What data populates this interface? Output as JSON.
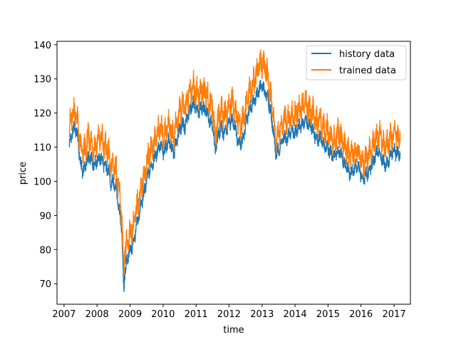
{
  "chart_data": {
    "type": "line",
    "title": "",
    "xlabel": "time",
    "ylabel": "price",
    "xlim": [
      "2006-10-15",
      "2017-07-01"
    ],
    "ylim": [
      64,
      141
    ],
    "x_tick_labels": [
      "2007",
      "2008",
      "2009",
      "2010",
      "2011",
      "2012",
      "2013",
      "2014",
      "2015",
      "2016",
      "2017"
    ],
    "y_tick_labels": [
      "70",
      "80",
      "90",
      "100",
      "110",
      "120",
      "130",
      "140"
    ],
    "grid": false,
    "legend_position": "top-right",
    "series": [
      {
        "name": "history data",
        "color": "#1f77b4",
        "points": [
          [
            "2007-03-01",
            111
          ],
          [
            "2007-04-01",
            114
          ],
          [
            "2007-05-01",
            116
          ],
          [
            "2007-06-01",
            113
          ],
          [
            "2007-07-01",
            105
          ],
          [
            "2007-08-01",
            103
          ],
          [
            "2007-09-01",
            105
          ],
          [
            "2007-10-01",
            107
          ],
          [
            "2007-11-01",
            106
          ],
          [
            "2007-12-01",
            105
          ],
          [
            "2008-01-01",
            106
          ],
          [
            "2008-02-01",
            107
          ],
          [
            "2008-03-01",
            106
          ],
          [
            "2008-04-01",
            104
          ],
          [
            "2008-05-01",
            104
          ],
          [
            "2008-06-01",
            99
          ],
          [
            "2008-07-01",
            100
          ],
          [
            "2008-08-01",
            98
          ],
          [
            "2008-09-01",
            92
          ],
          [
            "2008-10-01",
            86
          ],
          [
            "2008-10-20",
            70
          ],
          [
            "2008-10-25",
            67
          ],
          [
            "2008-11-01",
            73
          ],
          [
            "2008-12-01",
            77
          ],
          [
            "2009-01-01",
            80
          ],
          [
            "2009-02-01",
            81
          ],
          [
            "2009-03-01",
            85
          ],
          [
            "2009-04-01",
            89
          ],
          [
            "2009-05-01",
            93
          ],
          [
            "2009-06-01",
            96
          ],
          [
            "2009-07-01",
            100
          ],
          [
            "2009-08-01",
            103
          ],
          [
            "2009-09-01",
            105
          ],
          [
            "2009-10-01",
            107
          ],
          [
            "2009-11-01",
            109
          ],
          [
            "2009-12-01",
            111
          ],
          [
            "2010-01-01",
            108
          ],
          [
            "2010-02-01",
            110
          ],
          [
            "2010-03-01",
            112
          ],
          [
            "2010-04-01",
            110
          ],
          [
            "2010-05-01",
            108
          ],
          [
            "2010-06-01",
            112
          ],
          [
            "2010-07-01",
            115
          ],
          [
            "2010-08-01",
            117
          ],
          [
            "2010-09-01",
            116
          ],
          [
            "2010-10-01",
            119
          ],
          [
            "2010-11-01",
            121
          ],
          [
            "2010-12-01",
            123
          ],
          [
            "2011-01-01",
            121
          ],
          [
            "2011-02-01",
            120
          ],
          [
            "2011-03-01",
            122
          ],
          [
            "2011-04-01",
            121
          ],
          [
            "2011-05-01",
            120
          ],
          [
            "2011-06-01",
            118
          ],
          [
            "2011-07-01",
            117
          ],
          [
            "2011-08-01",
            109
          ],
          [
            "2011-09-01",
            113
          ],
          [
            "2011-10-01",
            116
          ],
          [
            "2011-11-01",
            114
          ],
          [
            "2011-12-01",
            115
          ],
          [
            "2012-01-01",
            117
          ],
          [
            "2012-02-01",
            118
          ],
          [
            "2012-03-01",
            117
          ],
          [
            "2012-04-01",
            113
          ],
          [
            "2012-05-01",
            111
          ],
          [
            "2012-06-01",
            112
          ],
          [
            "2012-07-01",
            116
          ],
          [
            "2012-08-01",
            120
          ],
          [
            "2012-09-01",
            122
          ],
          [
            "2012-10-01",
            124
          ],
          [
            "2012-11-01",
            125
          ],
          [
            "2012-12-01",
            127
          ],
          [
            "2013-01-01",
            128
          ],
          [
            "2013-02-01",
            126
          ],
          [
            "2013-03-01",
            125
          ],
          [
            "2013-04-01",
            121
          ],
          [
            "2013-05-01",
            116
          ],
          [
            "2013-06-01",
            108
          ],
          [
            "2013-07-01",
            109
          ],
          [
            "2013-08-01",
            111
          ],
          [
            "2013-09-01",
            113
          ],
          [
            "2013-10-01",
            112
          ],
          [
            "2013-11-01",
            114
          ],
          [
            "2013-12-01",
            115
          ],
          [
            "2014-01-01",
            114
          ],
          [
            "2014-02-01",
            116
          ],
          [
            "2014-03-01",
            116
          ],
          [
            "2014-04-01",
            117
          ],
          [
            "2014-05-01",
            118
          ],
          [
            "2014-06-01",
            116
          ],
          [
            "2014-07-01",
            116
          ],
          [
            "2014-08-01",
            114
          ],
          [
            "2014-09-01",
            112
          ],
          [
            "2014-10-01",
            113
          ],
          [
            "2014-11-01",
            111
          ],
          [
            "2014-12-01",
            110
          ],
          [
            "2015-01-01",
            110
          ],
          [
            "2015-02-01",
            108
          ],
          [
            "2015-03-01",
            107
          ],
          [
            "2015-04-01",
            108
          ],
          [
            "2015-05-01",
            109
          ],
          [
            "2015-06-01",
            107
          ],
          [
            "2015-07-01",
            105
          ],
          [
            "2015-08-01",
            104
          ],
          [
            "2015-09-01",
            102
          ],
          [
            "2015-10-01",
            103
          ],
          [
            "2015-11-01",
            104
          ],
          [
            "2015-12-01",
            104
          ],
          [
            "2016-01-01",
            102
          ],
          [
            "2016-02-01",
            101
          ],
          [
            "2016-03-01",
            102
          ],
          [
            "2016-04-01",
            103
          ],
          [
            "2016-05-01",
            105
          ],
          [
            "2016-06-01",
            107
          ],
          [
            "2016-07-01",
            109
          ],
          [
            "2016-08-01",
            108
          ],
          [
            "2016-09-01",
            106
          ],
          [
            "2016-10-01",
            105
          ],
          [
            "2016-11-01",
            106
          ],
          [
            "2016-12-01",
            108
          ],
          [
            "2017-01-01",
            109
          ],
          [
            "2017-02-01",
            108
          ],
          [
            "2017-03-10",
            108
          ]
        ]
      },
      {
        "name": "trained data",
        "color": "#ff7f0e",
        "points": [
          [
            "2007-03-01",
            116
          ],
          [
            "2007-04-01",
            119
          ],
          [
            "2007-05-01",
            121
          ],
          [
            "2007-06-01",
            117
          ],
          [
            "2007-07-01",
            110
          ],
          [
            "2007-08-01",
            108
          ],
          [
            "2007-09-01",
            110
          ],
          [
            "2007-10-01",
            113
          ],
          [
            "2007-11-01",
            111
          ],
          [
            "2007-12-01",
            110
          ],
          [
            "2008-01-01",
            111
          ],
          [
            "2008-02-01",
            113
          ],
          [
            "2008-03-01",
            112
          ],
          [
            "2008-04-01",
            110
          ],
          [
            "2008-05-01",
            109
          ],
          [
            "2008-06-01",
            104
          ],
          [
            "2008-07-01",
            105
          ],
          [
            "2008-08-01",
            103
          ],
          [
            "2008-09-01",
            97
          ],
          [
            "2008-10-01",
            90
          ],
          [
            "2008-10-20",
            74
          ],
          [
            "2008-10-25",
            70
          ],
          [
            "2008-11-01",
            79
          ],
          [
            "2008-12-01",
            82
          ],
          [
            "2009-01-01",
            85
          ],
          [
            "2009-02-01",
            86
          ],
          [
            "2009-03-01",
            90
          ],
          [
            "2009-04-01",
            94
          ],
          [
            "2009-05-01",
            98
          ],
          [
            "2009-06-01",
            101
          ],
          [
            "2009-07-01",
            105
          ],
          [
            "2009-08-01",
            108
          ],
          [
            "2009-09-01",
            110
          ],
          [
            "2009-10-01",
            112
          ],
          [
            "2009-11-01",
            114
          ],
          [
            "2009-12-01",
            116
          ],
          [
            "2010-01-01",
            113
          ],
          [
            "2010-02-01",
            115
          ],
          [
            "2010-03-01",
            117
          ],
          [
            "2010-04-01",
            115
          ],
          [
            "2010-05-01",
            113
          ],
          [
            "2010-06-01",
            117
          ],
          [
            "2010-07-01",
            120
          ],
          [
            "2010-08-01",
            122
          ],
          [
            "2010-09-01",
            121
          ],
          [
            "2010-10-01",
            124
          ],
          [
            "2010-11-01",
            127
          ],
          [
            "2010-12-01",
            128
          ],
          [
            "2011-01-01",
            126
          ],
          [
            "2011-02-01",
            125
          ],
          [
            "2011-03-01",
            127
          ],
          [
            "2011-04-01",
            126
          ],
          [
            "2011-05-01",
            125
          ],
          [
            "2011-06-01",
            123
          ],
          [
            "2011-07-01",
            122
          ],
          [
            "2011-08-01",
            113
          ],
          [
            "2011-09-01",
            118
          ],
          [
            "2011-10-01",
            121
          ],
          [
            "2011-11-01",
            119
          ],
          [
            "2011-12-01",
            120
          ],
          [
            "2012-01-01",
            122
          ],
          [
            "2012-02-01",
            123
          ],
          [
            "2012-03-01",
            122
          ],
          [
            "2012-04-01",
            118
          ],
          [
            "2012-05-01",
            116
          ],
          [
            "2012-06-01",
            117
          ],
          [
            "2012-07-01",
            121
          ],
          [
            "2012-08-01",
            125
          ],
          [
            "2012-09-01",
            127
          ],
          [
            "2012-10-01",
            129
          ],
          [
            "2012-11-01",
            131
          ],
          [
            "2012-12-01",
            134
          ],
          [
            "2013-01-01",
            135
          ],
          [
            "2013-02-01",
            133
          ],
          [
            "2013-03-01",
            131
          ],
          [
            "2013-04-01",
            126
          ],
          [
            "2013-05-01",
            121
          ],
          [
            "2013-06-01",
            113
          ],
          [
            "2013-07-01",
            114
          ],
          [
            "2013-08-01",
            116
          ],
          [
            "2013-09-01",
            118
          ],
          [
            "2013-10-01",
            117
          ],
          [
            "2013-11-01",
            119
          ],
          [
            "2013-12-01",
            120
          ],
          [
            "2014-01-01",
            119
          ],
          [
            "2014-02-01",
            121
          ],
          [
            "2014-03-01",
            121
          ],
          [
            "2014-04-01",
            122
          ],
          [
            "2014-05-01",
            123
          ],
          [
            "2014-06-01",
            121
          ],
          [
            "2014-07-01",
            121
          ],
          [
            "2014-08-01",
            119
          ],
          [
            "2014-09-01",
            117
          ],
          [
            "2014-10-01",
            118
          ],
          [
            "2014-11-01",
            116
          ],
          [
            "2014-12-01",
            115
          ],
          [
            "2015-01-01",
            115
          ],
          [
            "2015-02-01",
            113
          ],
          [
            "2015-03-01",
            112
          ],
          [
            "2015-04-01",
            113
          ],
          [
            "2015-05-01",
            114
          ],
          [
            "2015-06-01",
            112
          ],
          [
            "2015-07-01",
            110
          ],
          [
            "2015-08-01",
            109
          ],
          [
            "2015-09-01",
            107
          ],
          [
            "2015-10-01",
            108
          ],
          [
            "2015-11-01",
            109
          ],
          [
            "2015-12-01",
            109
          ],
          [
            "2016-01-01",
            106
          ],
          [
            "2016-02-01",
            105
          ],
          [
            "2016-03-01",
            107
          ],
          [
            "2016-04-01",
            108
          ],
          [
            "2016-05-01",
            110
          ],
          [
            "2016-06-01",
            112
          ],
          [
            "2016-07-01",
            114
          ],
          [
            "2016-08-01",
            113
          ],
          [
            "2016-09-01",
            111
          ],
          [
            "2016-10-01",
            110
          ],
          [
            "2016-11-01",
            111
          ],
          [
            "2016-12-01",
            113
          ],
          [
            "2017-01-01",
            114
          ],
          [
            "2017-02-01",
            113
          ],
          [
            "2017-03-10",
            114
          ]
        ]
      }
    ]
  }
}
